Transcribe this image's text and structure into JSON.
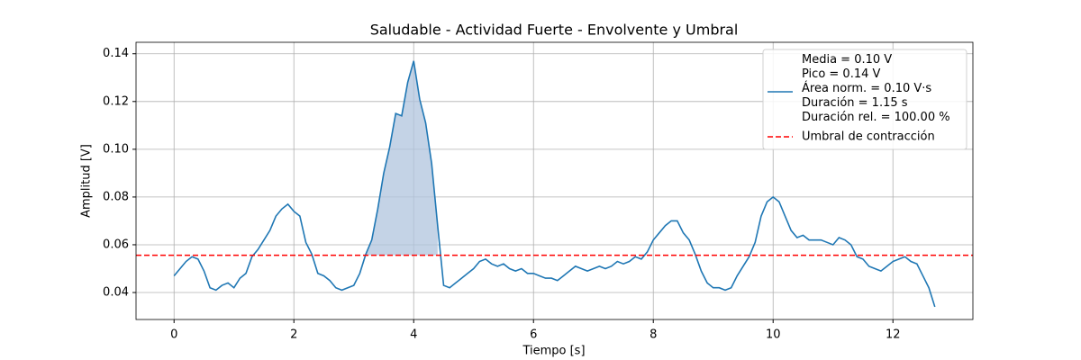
{
  "chart_data": {
    "type": "line",
    "title": "Saludable - Actividad Fuerte - Envolvente y Umbral",
    "xlabel": "Tiempo [s]",
    "ylabel": "Amplitud [V]",
    "xlim": [
      -0.635,
      13.335
    ],
    "ylim": [
      0.0287,
      0.1448
    ],
    "xticks": [
      0,
      2,
      4,
      6,
      8,
      10,
      12
    ],
    "yticks": [
      0.04,
      0.06,
      0.08,
      {
        "value": 0.1,
        "label": "0.10"
      },
      0.12,
      0.14
    ],
    "grid": true,
    "legend": "upper right",
    "x": [
      0,
      0.1,
      0.2,
      0.3,
      0.4,
      0.5,
      0.6,
      0.7,
      0.8,
      0.9,
      1,
      1.1,
      1.2,
      1.3,
      1.4,
      1.5,
      1.6,
      1.7,
      1.8,
      1.9,
      2,
      2.1,
      2.2,
      2.3,
      2.4,
      2.5,
      2.6,
      2.7,
      2.8,
      2.9,
      3,
      3.1,
      3.2,
      3.3,
      3.4,
      3.5,
      3.6,
      3.7,
      3.8,
      3.9,
      4,
      4.1,
      4.2,
      4.3,
      4.4,
      4.5,
      4.6,
      4.7,
      4.8,
      4.9,
      5,
      5.1,
      5.2,
      5.3,
      5.4,
      5.5,
      5.6,
      5.7,
      5.8,
      5.9,
      6,
      6.1,
      6.2,
      6.3,
      6.4,
      6.5,
      6.6,
      6.7,
      6.8,
      6.9,
      7,
      7.1,
      7.2,
      7.3,
      7.4,
      7.5,
      7.6,
      7.7,
      7.8,
      7.9,
      8,
      8.1,
      8.2,
      8.3,
      8.4,
      8.5,
      8.6,
      8.7,
      8.8,
      8.9,
      9,
      9.1,
      9.2,
      9.3,
      9.4,
      9.5,
      9.6,
      9.7,
      9.8,
      9.9,
      10,
      10.1,
      10.2,
      10.3,
      10.4,
      10.5,
      10.6,
      10.7,
      10.8,
      10.9,
      11,
      11.1,
      11.2,
      11.3,
      11.4,
      11.5,
      11.6,
      11.7,
      11.8,
      11.9,
      12,
      12.1,
      12.2,
      12.3,
      12.4,
      12.5,
      12.6,
      12.7
    ],
    "series": [
      {
        "name": "Media = 0.10 V\nPico = 0.14 V\nÁrea norm. = 0.10 V·s\nDuración = 1.15 s\nDuración rel. = 100.00 %",
        "color": "#1f77b4",
        "fill_color": "#b0c4de",
        "values": [
          0.047,
          0.05,
          0.053,
          0.055,
          0.054,
          0.049,
          0.042,
          0.041,
          0.043,
          0.044,
          0.042,
          0.046,
          0.048,
          0.055,
          0.058,
          0.062,
          0.066,
          0.072,
          0.075,
          0.077,
          0.074,
          0.072,
          0.061,
          0.056,
          0.048,
          0.047,
          0.045,
          0.042,
          0.041,
          0.042,
          0.043,
          0.048,
          0.056,
          0.062,
          0.075,
          0.09,
          0.101,
          0.115,
          0.114,
          0.128,
          0.137,
          0.121,
          0.111,
          0.094,
          0.068,
          0.043,
          0.042,
          0.044,
          0.046,
          0.048,
          0.05,
          0.053,
          0.054,
          0.052,
          0.051,
          0.052,
          0.05,
          0.049,
          0.05,
          0.048,
          0.048,
          0.047,
          0.046,
          0.046,
          0.045,
          0.047,
          0.049,
          0.051,
          0.05,
          0.049,
          0.05,
          0.051,
          0.05,
          0.051,
          0.053,
          0.052,
          0.053,
          0.055,
          0.054,
          0.057,
          0.062,
          0.065,
          0.068,
          0.07,
          0.07,
          0.065,
          0.062,
          0.056,
          0.049,
          0.044,
          0.042,
          0.042,
          0.041,
          0.042,
          0.047,
          0.051,
          0.055,
          0.061,
          0.072,
          0.078,
          0.08,
          0.078,
          0.072,
          0.066,
          0.063,
          0.064,
          0.062,
          0.062,
          0.062,
          0.061,
          0.06,
          0.063,
          0.062,
          0.06,
          0.055,
          0.054,
          0.051,
          0.05,
          0.049,
          0.051,
          0.053,
          0.054,
          0.055,
          0.053,
          0.052,
          0.047,
          0.042,
          0.034
        ]
      }
    ],
    "threshold": {
      "name": "Umbral de contracción",
      "value": 0.0556,
      "color": "#ff0000"
    }
  }
}
